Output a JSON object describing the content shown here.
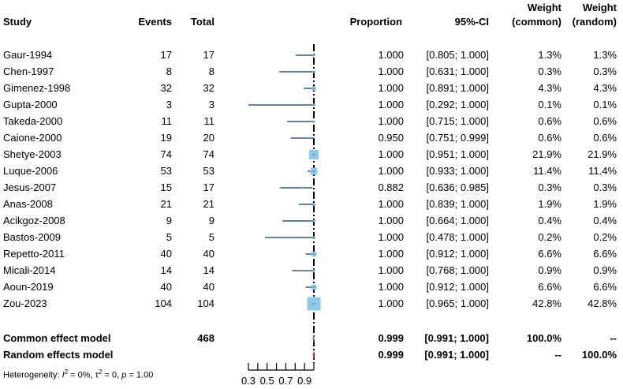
{
  "headers": {
    "study": "Study",
    "events": "Events",
    "total": "Total",
    "proportion": "Proportion",
    "ci": "95%-CI",
    "weight_common_1": "Weight",
    "weight_common_2": "(common)",
    "weight_random_1": "Weight",
    "weight_random_2": "(random)"
  },
  "studies": [
    {
      "study": "Gaur-1994",
      "events": "17",
      "total": "17",
      "prop": "1.000",
      "ci": "[0.805; 1.000]",
      "wc": "1.3%",
      "wr": "1.3%"
    },
    {
      "study": "Chen-1997",
      "events": "8",
      "total": "8",
      "prop": "1.000",
      "ci": "[0.631; 1.000]",
      "wc": "0.3%",
      "wr": "0.3%"
    },
    {
      "study": "Gimenez-1998",
      "events": "32",
      "total": "32",
      "prop": "1.000",
      "ci": "[0.891; 1.000]",
      "wc": "4.3%",
      "wr": "4.3%"
    },
    {
      "study": "Gupta-2000",
      "events": "3",
      "total": "3",
      "prop": "1.000",
      "ci": "[0.292; 1.000]",
      "wc": "0.1%",
      "wr": "0.1%"
    },
    {
      "study": "Takeda-2000",
      "events": "11",
      "total": "11",
      "prop": "1.000",
      "ci": "[0.715; 1.000]",
      "wc": "0.6%",
      "wr": "0.6%"
    },
    {
      "study": "Caione-2000",
      "events": "19",
      "total": "20",
      "prop": "0.950",
      "ci": "[0.751; 0.999]",
      "wc": "0.6%",
      "wr": "0.6%"
    },
    {
      "study": "Shetye-2003",
      "events": "74",
      "total": "74",
      "prop": "1.000",
      "ci": "[0.951; 1.000]",
      "wc": "21.9%",
      "wr": "21.9%"
    },
    {
      "study": "Luque-2006",
      "events": "53",
      "total": "53",
      "prop": "1.000",
      "ci": "[0.933; 1.000]",
      "wc": "11.4%",
      "wr": "11.4%"
    },
    {
      "study": "Jesus-2007",
      "events": "15",
      "total": "17",
      "prop": "0.882",
      "ci": "[0.636; 0.985]",
      "wc": "0.3%",
      "wr": "0.3%"
    },
    {
      "study": "Anas-2008",
      "events": "21",
      "total": "21",
      "prop": "1.000",
      "ci": "[0.839; 1.000]",
      "wc": "1.9%",
      "wr": "1.9%"
    },
    {
      "study": "Acikgoz-2008",
      "events": "9",
      "total": "9",
      "prop": "1.000",
      "ci": "[0.664; 1.000]",
      "wc": "0.4%",
      "wr": "0.4%"
    },
    {
      "study": "Bastos-2009",
      "events": "5",
      "total": "5",
      "prop": "1.000",
      "ci": "[0.478; 1.000]",
      "wc": "0.2%",
      "wr": "0.2%"
    },
    {
      "study": "Repetto-2011",
      "events": "40",
      "total": "40",
      "prop": "1.000",
      "ci": "[0.912; 1.000]",
      "wc": "6.6%",
      "wr": "6.6%"
    },
    {
      "study": "Micali-2014",
      "events": "14",
      "total": "14",
      "prop": "1.000",
      "ci": "[0.768; 1.000]",
      "wc": "0.9%",
      "wr": "0.9%"
    },
    {
      "study": "Aoun-2019",
      "events": "40",
      "total": "40",
      "prop": "1.000",
      "ci": "[0.912; 1.000]",
      "wc": "6.6%",
      "wr": "6.6%"
    },
    {
      "study": "Zou-2023",
      "events": "104",
      "total": "104",
      "prop": "1.000",
      "ci": "[0.965; 1.000]",
      "wc": "42.8%",
      "wr": "42.8%"
    }
  ],
  "common": {
    "label": "Common effect model",
    "total": "468",
    "prop": "0.999",
    "ci": "[0.991; 1.000]",
    "wc": "100.0%",
    "wr": "--"
  },
  "random": {
    "label": "Random effects model",
    "prop": "0.999",
    "ci": "[0.991; 1.000]",
    "wc": "--",
    "wr": "100.0%"
  },
  "heterogeneity": {
    "prefix": "Heterogeneity: ",
    "i2": "I",
    "i2_rest": " = 0%, ",
    "tau": "τ",
    "tau_rest": " = 0, ",
    "p": "p",
    "p_rest": " = 1.00"
  },
  "colors": {
    "ci_line": "#6b8296",
    "box": "#8ecae6",
    "ref_line": "#000000",
    "random_diamond": "#c0505f",
    "axis": "#000000"
  },
  "chart_data": {
    "type": "forest",
    "xlim": [
      0.3,
      1.0
    ],
    "ticks": [
      0.3,
      0.4,
      0.5,
      0.6,
      0.7,
      0.8,
      0.9,
      1.0
    ],
    "tick_labels": [
      "0.3",
      "0.5",
      "0.7",
      "0.9"
    ],
    "tick_label_values": [
      0.3,
      0.5,
      0.7,
      0.9
    ],
    "reference_line": 1.0,
    "studies": [
      {
        "study": "Gaur-1994",
        "est": 1.0,
        "lo": 0.805,
        "hi": 1.0,
        "weight": 1.3
      },
      {
        "study": "Chen-1997",
        "est": 1.0,
        "lo": 0.631,
        "hi": 1.0,
        "weight": 0.3
      },
      {
        "study": "Gimenez-1998",
        "est": 1.0,
        "lo": 0.891,
        "hi": 1.0,
        "weight": 4.3
      },
      {
        "study": "Gupta-2000",
        "est": 1.0,
        "lo": 0.292,
        "hi": 1.0,
        "weight": 0.1
      },
      {
        "study": "Takeda-2000",
        "est": 1.0,
        "lo": 0.715,
        "hi": 1.0,
        "weight": 0.6
      },
      {
        "study": "Caione-2000",
        "est": 0.95,
        "lo": 0.751,
        "hi": 0.999,
        "weight": 0.6
      },
      {
        "study": "Shetye-2003",
        "est": 1.0,
        "lo": 0.951,
        "hi": 1.0,
        "weight": 21.9
      },
      {
        "study": "Luque-2006",
        "est": 1.0,
        "lo": 0.933,
        "hi": 1.0,
        "weight": 11.4
      },
      {
        "study": "Jesus-2007",
        "est": 0.882,
        "lo": 0.636,
        "hi": 0.985,
        "weight": 0.3
      },
      {
        "study": "Anas-2008",
        "est": 1.0,
        "lo": 0.839,
        "hi": 1.0,
        "weight": 1.9
      },
      {
        "study": "Acikgoz-2008",
        "est": 1.0,
        "lo": 0.664,
        "hi": 1.0,
        "weight": 0.4
      },
      {
        "study": "Bastos-2009",
        "est": 1.0,
        "lo": 0.478,
        "hi": 1.0,
        "weight": 0.2
      },
      {
        "study": "Repetto-2011",
        "est": 1.0,
        "lo": 0.912,
        "hi": 1.0,
        "weight": 6.6
      },
      {
        "study": "Micali-2014",
        "est": 1.0,
        "lo": 0.768,
        "hi": 1.0,
        "weight": 0.9
      },
      {
        "study": "Aoun-2019",
        "est": 1.0,
        "lo": 0.912,
        "hi": 1.0,
        "weight": 6.6
      },
      {
        "study": "Zou-2023",
        "est": 1.0,
        "lo": 0.965,
        "hi": 1.0,
        "weight": 42.8
      }
    ],
    "common_effect": {
      "est": 0.999,
      "lo": 0.991,
      "hi": 1.0
    },
    "random_effects": {
      "est": 0.999,
      "lo": 0.991,
      "hi": 1.0
    }
  }
}
